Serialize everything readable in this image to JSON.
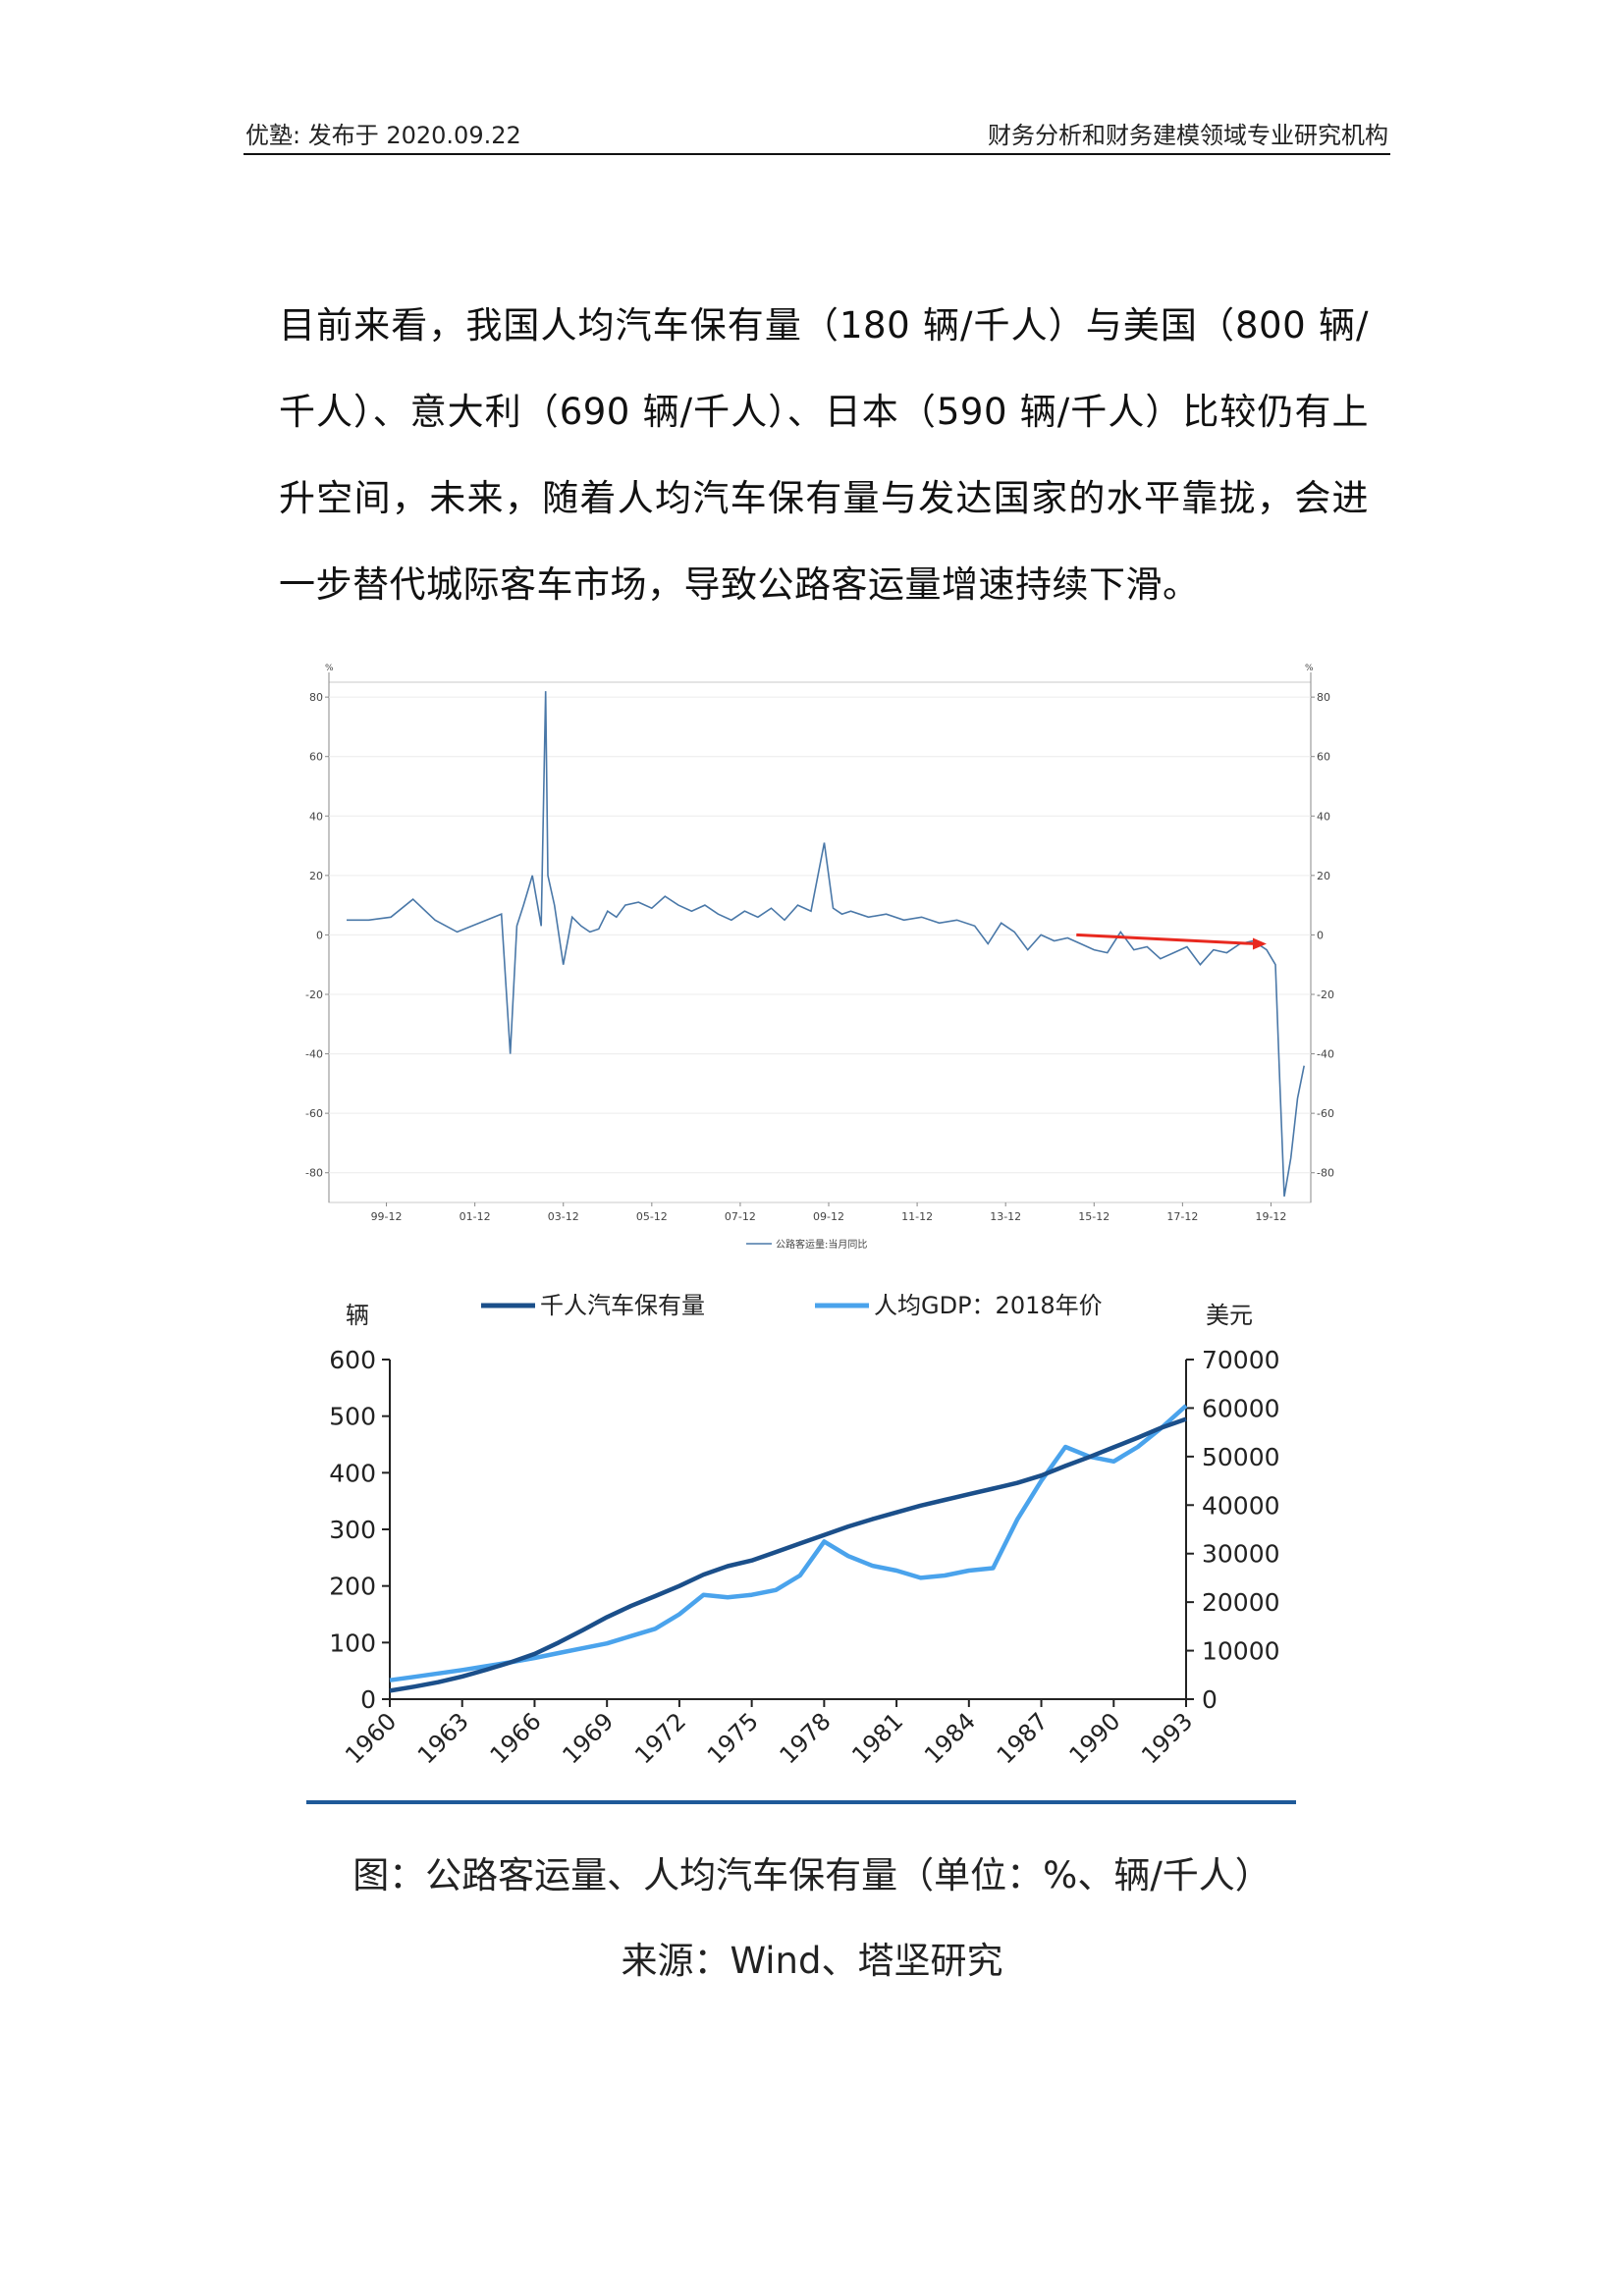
{
  "header": {
    "left": "优塾: 发布于 2020.09.22",
    "right": "财务分析和财务建模领域专业研究机构"
  },
  "body_text": "目前来看，我国人均汽车保有量（180 辆/千人）与美国（800 辆/千人）、意大利（690 辆/千人）、日本（590 辆/千人）比较仍有上升空间，未来，随着人均汽车保有量与发达国家的水平靠拢，会进一步替代城际客车市场，导致公路客运量增速持续下滑。",
  "chart_data": [
    {
      "type": "line",
      "title": "",
      "y_unit_left": "%",
      "y_unit_right": "%",
      "ylim": [
        -90,
        85
      ],
      "y_ticks": [
        80,
        60,
        40,
        20,
        0,
        -20,
        -40,
        -60,
        -80
      ],
      "x_tick_labels": [
        "99-12",
        "01-12",
        "03-12",
        "05-12",
        "07-12",
        "09-12",
        "11-12",
        "13-12",
        "15-12",
        "17-12",
        "19-12"
      ],
      "legend": [
        "公路客运量:当月同比"
      ],
      "series": [
        {
          "name": "公路客运量:当月同比",
          "color": "#4a78a8",
          "x": [
            1999.0,
            1999.5,
            2000.0,
            2000.5,
            2001.0,
            2001.5,
            2002.0,
            2002.5,
            2002.7,
            2002.85,
            2003.0,
            2003.2,
            2003.4,
            2003.5,
            2003.55,
            2003.7,
            2003.9,
            2004.1,
            2004.3,
            2004.5,
            2004.7,
            2004.9,
            2005.1,
            2005.3,
            2005.6,
            2005.9,
            2006.2,
            2006.5,
            2006.8,
            2007.1,
            2007.4,
            2007.7,
            2008.0,
            2008.3,
            2008.6,
            2008.9,
            2009.2,
            2009.5,
            2009.8,
            2010.0,
            2010.2,
            2010.4,
            2010.8,
            2011.2,
            2011.6,
            2012.0,
            2012.4,
            2012.8,
            2013.2,
            2013.5,
            2013.8,
            2014.1,
            2014.4,
            2014.7,
            2015.0,
            2015.3,
            2015.6,
            2015.9,
            2016.2,
            2016.5,
            2016.8,
            2017.1,
            2017.4,
            2017.7,
            2018.0,
            2018.3,
            2018.6,
            2018.9,
            2019.2,
            2019.5,
            2019.8,
            2020.0,
            2020.1,
            2020.2,
            2020.35,
            2020.5,
            2020.65
          ],
          "y": [
            5,
            5,
            6,
            12,
            5,
            1,
            4,
            7,
            -40,
            3,
            10,
            20,
            3,
            82,
            20,
            10,
            -10,
            6,
            3,
            1,
            2,
            8,
            6,
            10,
            11,
            9,
            13,
            10,
            8,
            10,
            7,
            5,
            8,
            6,
            9,
            5,
            10,
            8,
            31,
            9,
            7,
            8,
            6,
            7,
            5,
            6,
            4,
            5,
            3,
            -3,
            4,
            1,
            -5,
            0,
            -2,
            -1,
            -3,
            -5,
            -6,
            1,
            -5,
            -4,
            -8,
            -6,
            -4,
            -10,
            -5,
            -6,
            -3,
            -2,
            -5,
            -10,
            -50,
            -88,
            -75,
            -55,
            -44
          ]
        }
      ],
      "annotation": {
        "type": "arrow",
        "color": "#e8291f",
        "from": [
          2015.5,
          0
        ],
        "to": [
          2019.8,
          -3
        ]
      }
    },
    {
      "type": "line",
      "title": "",
      "left_unit": "辆",
      "right_unit": "美元",
      "x_tick_labels": [
        "1960",
        "1963",
        "1966",
        "1969",
        "1972",
        "1975",
        "1978",
        "1981",
        "1984",
        "1987",
        "1990",
        "1993"
      ],
      "ylim_left": [
        0,
        600
      ],
      "y_ticks_left": [
        600,
        500,
        400,
        300,
        200,
        100,
        0
      ],
      "ylim_right": [
        0,
        70000
      ],
      "y_ticks_right": [
        70000,
        60000,
        50000,
        40000,
        30000,
        20000,
        10000,
        0
      ],
      "legend_placement": "top",
      "series": [
        {
          "name": "千人汽车保有量",
          "axis": "left",
          "color": "#1b4f8a",
          "x": [
            1960,
            1961,
            1962,
            1963,
            1964,
            1965,
            1966,
            1967,
            1968,
            1969,
            1970,
            1971,
            1972,
            1973,
            1974,
            1975,
            1976,
            1977,
            1978,
            1979,
            1980,
            1981,
            1982,
            1983,
            1984,
            1985,
            1986,
            1987,
            1988,
            1989,
            1990,
            1991,
            1992,
            1993
          ],
          "y": [
            15,
            22,
            30,
            40,
            52,
            65,
            80,
            100,
            122,
            145,
            165,
            182,
            200,
            220,
            235,
            245,
            260,
            275,
            290,
            305,
            318,
            330,
            342,
            352,
            362,
            372,
            382,
            395,
            412,
            428,
            445,
            462,
            480,
            495
          ]
        },
        {
          "name": "人均GDP：2018年价",
          "axis": "right",
          "color": "#4aa3ec",
          "x": [
            1960,
            1961,
            1962,
            1963,
            1964,
            1965,
            1966,
            1967,
            1968,
            1969,
            1970,
            1971,
            1972,
            1973,
            1974,
            1975,
            1976,
            1977,
            1978,
            1979,
            1980,
            1981,
            1982,
            1983,
            1984,
            1985,
            1986,
            1987,
            1988,
            1989,
            1990,
            1991,
            1992,
            1993
          ],
          "y": [
            3900,
            4600,
            5300,
            6000,
            6800,
            7600,
            8500,
            9500,
            10500,
            11500,
            13000,
            14500,
            17500,
            21500,
            21000,
            21500,
            22500,
            25500,
            32500,
            29500,
            27500,
            26500,
            25000,
            25500,
            26500,
            27000,
            37000,
            45000,
            52000,
            50000,
            49000,
            52000,
            56000,
            60500
          ]
        }
      ]
    }
  ],
  "caption": "图：公路客运量、人均汽车保有量（单位：%、辆/千人）",
  "source": "来源：Wind、塔坚研究"
}
